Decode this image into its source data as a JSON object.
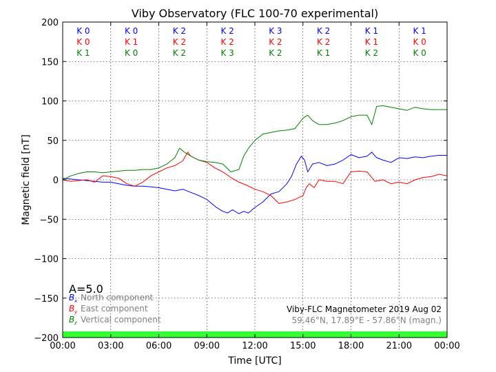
{
  "chart_data": {
    "type": "line",
    "title": "Viby Observatory (FLC 100-70 experimental)",
    "xlabel": "Time [UTC]",
    "ylabel": "Magnetic field [nT]",
    "xlim": [
      0,
      24
    ],
    "ylim": [
      -200,
      200
    ],
    "x_ticks": [
      0,
      3,
      6,
      9,
      12,
      15,
      18,
      21,
      24
    ],
    "x_tick_labels": [
      "00:00",
      "03:00",
      "06:00",
      "09:00",
      "12:00",
      "15:00",
      "18:00",
      "21:00",
      "00:00"
    ],
    "y_ticks": [
      200,
      150,
      100,
      50,
      0,
      -50,
      -100,
      -150,
      -200
    ],
    "y_tick_labels": [
      "200",
      "150",
      "100",
      "50",
      "0",
      "−50",
      "−100",
      "−150",
      "−200"
    ],
    "grid": true,
    "grid_style": "dotted",
    "colors": {
      "north": "#0000ff",
      "east": "#ff0000",
      "vertical": "#008000",
      "activity_bar": "#33ff33"
    },
    "k_index_rows": [
      {
        "color": "#0000ff",
        "labels": [
          "K 0",
          "K 0",
          "K 2",
          "K 2",
          "K 3",
          "K 2",
          "K 1",
          "K 1"
        ]
      },
      {
        "color": "#ff0000",
        "labels": [
          "K 0",
          "K 1",
          "K 2",
          "K 2",
          "K 2",
          "K 2",
          "K 1",
          "K 0"
        ]
      },
      {
        "color": "#008000",
        "labels": [
          "K 1",
          "K 0",
          "K 2",
          "K 3",
          "K 2",
          "K 1",
          "K 2",
          "K 0"
        ]
      }
    ],
    "a_index": "A=5.0",
    "legend_position": "bottom-left",
    "legend": [
      {
        "symbol": "B",
        "sub": "x",
        "label": "North component",
        "color": "#0000ff"
      },
      {
        "symbol": "B",
        "sub": "y",
        "label": "East component",
        "color": "#ff0000"
      },
      {
        "symbol": "B",
        "sub": "z",
        "label": "Vertical component",
        "color": "#008000"
      }
    ],
    "info_line1": "Viby-FLC Magnetometer 2019 Aug 02",
    "info_line2": "59.46°N, 17.89°E - 57.86°N (magn.)",
    "series": [
      {
        "name": "North component",
        "color": "#0000ff",
        "x": [
          0,
          0.5,
          1,
          1.5,
          2,
          2.5,
          3,
          3.5,
          4,
          4.5,
          5,
          5.5,
          6,
          6.5,
          7,
          7.5,
          8,
          8.5,
          9,
          9.3,
          9.6,
          10,
          10.3,
          10.6,
          11,
          11.3,
          11.6,
          12,
          12.5,
          13,
          13.5,
          14,
          14.3,
          14.6,
          14.9,
          15.1,
          15.3,
          15.6,
          16,
          16.5,
          17,
          17.5,
          18,
          18.5,
          19,
          19.3,
          19.6,
          20,
          20.5,
          21,
          21.5,
          22,
          22.5,
          23,
          23.5,
          24
        ],
        "y": [
          2,
          1,
          0,
          -1,
          -2,
          -3,
          -3,
          -5,
          -7,
          -8,
          -8,
          -9,
          -10,
          -12,
          -14,
          -12,
          -16,
          -20,
          -25,
          -30,
          -35,
          -40,
          -42,
          -38,
          -43,
          -40,
          -42,
          -35,
          -28,
          -18,
          -15,
          -5,
          5,
          20,
          30,
          25,
          10,
          20,
          22,
          18,
          20,
          25,
          32,
          28,
          30,
          35,
          28,
          25,
          22,
          28,
          27,
          29,
          28,
          30,
          31,
          31
        ]
      },
      {
        "name": "East component",
        "color": "#ff0000",
        "x": [
          0,
          0.5,
          1,
          1.5,
          2,
          2.5,
          3,
          3.5,
          4,
          4.5,
          5,
          5.5,
          6,
          6.5,
          7,
          7.5,
          7.8,
          8,
          8.5,
          9,
          9.5,
          10,
          10.5,
          11,
          11.5,
          12,
          12.5,
          13,
          13.5,
          14,
          14.5,
          15,
          15.2,
          15.4,
          15.7,
          16,
          16.5,
          17,
          17.5,
          18,
          18.5,
          19,
          19.5,
          20,
          20.5,
          21,
          21.5,
          22,
          22.5,
          23,
          23.5,
          24
        ],
        "y": [
          0,
          -2,
          -1,
          0,
          -3,
          5,
          4,
          2,
          -5,
          -8,
          -3,
          5,
          10,
          15,
          18,
          24,
          35,
          30,
          25,
          22,
          15,
          10,
          3,
          -3,
          -7,
          -12,
          -15,
          -20,
          -30,
          -28,
          -25,
          -20,
          -10,
          -5,
          -10,
          0,
          -2,
          -2,
          -5,
          10,
          11,
          10,
          -2,
          0,
          -5,
          -3,
          -5,
          0,
          3,
          4,
          7,
          5
        ]
      },
      {
        "name": "Vertical component",
        "color": "#008000",
        "x": [
          0,
          0.5,
          1,
          1.5,
          2,
          2.5,
          3,
          3.5,
          4,
          4.5,
          5,
          5.5,
          6,
          6.5,
          7,
          7.3,
          7.6,
          8,
          8.5,
          9,
          9.5,
          10,
          10.5,
          11,
          11.3,
          11.6,
          12,
          12.5,
          13,
          13.5,
          14,
          14.5,
          15,
          15.3,
          15.6,
          16,
          16.5,
          17,
          17.5,
          18,
          18.5,
          19,
          19.3,
          19.6,
          20,
          20.5,
          21,
          21.5,
          22,
          22.5,
          23,
          23.5,
          24
        ],
        "y": [
          0,
          5,
          8,
          10,
          10,
          9,
          10,
          11,
          12,
          12,
          13,
          13,
          15,
          20,
          28,
          40,
          35,
          30,
          25,
          23,
          22,
          20,
          10,
          13,
          30,
          40,
          50,
          58,
          60,
          62,
          63,
          65,
          78,
          82,
          75,
          70,
          70,
          72,
          75,
          80,
          82,
          82,
          70,
          93,
          94,
          92,
          90,
          88,
          92,
          90,
          89,
          89,
          89
        ]
      }
    ]
  }
}
